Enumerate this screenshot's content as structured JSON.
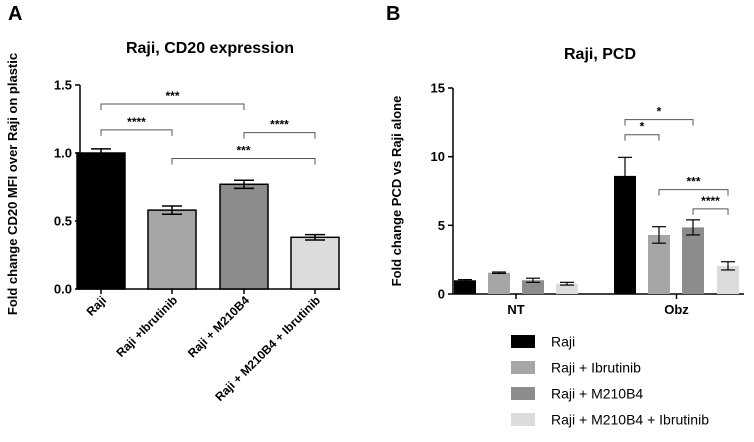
{
  "chart_data": [
    {
      "panel": "A",
      "type": "bar",
      "title": "Raji, CD20 expression",
      "ylabel": "Fold change CD20 MFI over Raji on plastic",
      "xlabel": "",
      "ylim": [
        0,
        1.5
      ],
      "yticks": [
        "0.0",
        "0.5",
        "1.0",
        "1.5"
      ],
      "yticks_values": [
        0,
        0.5,
        1.0,
        1.5
      ],
      "categories": [
        "Raji",
        "Raji +Ibrutinib",
        "Raji + M210B4",
        "Raji + M210B4 + Ibrutinib"
      ],
      "values": [
        1.0,
        0.58,
        0.77,
        0.38
      ],
      "errors": [
        0.03,
        0.03,
        0.03,
        0.02
      ],
      "colors": [
        "#000000",
        "#a6a6a6",
        "#8c8c8c",
        "#dcdcdc"
      ],
      "significance": [
        {
          "from": 0,
          "to": 1,
          "y": 1.17,
          "label": "****"
        },
        {
          "from": 0,
          "to": 2,
          "y": 1.36,
          "label": "***"
        },
        {
          "from": 1,
          "to": 3,
          "y": 0.96,
          "label": "***"
        },
        {
          "from": 2,
          "to": 3,
          "y": 1.15,
          "label": "****"
        }
      ]
    },
    {
      "panel": "B",
      "type": "bar",
      "title": "Raji,  PCD",
      "ylabel": "Fold change PCD vs Raji alone",
      "xlabel": "",
      "ylim": [
        0,
        15
      ],
      "yticks": [
        "0",
        "5",
        "10",
        "15"
      ],
      "yticks_values": [
        0,
        5,
        10,
        15
      ],
      "categories": [
        "NT",
        "Obz"
      ],
      "series": [
        {
          "name": "Raji",
          "values": [
            1.0,
            8.6
          ],
          "errors": [
            0.05,
            1.35
          ],
          "color": "#000000"
        },
        {
          "name": "Raji + Ibrutinib",
          "values": [
            1.55,
            4.3
          ],
          "errors": [
            0.05,
            0.6
          ],
          "color": "#a6a6a6"
        },
        {
          "name": "Raji + M210B4",
          "values": [
            1.0,
            4.85
          ],
          "errors": [
            0.15,
            0.55
          ],
          "color": "#8c8c8c"
        },
        {
          "name": "Raji + M210B4 + Ibrutinib",
          "values": [
            0.75,
            2.05
          ],
          "errors": [
            0.1,
            0.3
          ],
          "color": "#dcdcdc"
        }
      ],
      "significance": [
        {
          "category": 1,
          "from": 0,
          "to": 1,
          "y": 11.6,
          "label": "*"
        },
        {
          "category": 1,
          "from": 0,
          "to": 2,
          "y": 12.7,
          "label": "*"
        },
        {
          "category": 1,
          "from": 1,
          "to": 3,
          "y": 7.6,
          "label": "***"
        },
        {
          "category": 1,
          "from": 2,
          "to": 3,
          "y": 6.2,
          "label": "****"
        }
      ],
      "legend": [
        "Raji",
        "Raji + Ibrutinib",
        "Raji + M210B4",
        "Raji + M210B4 + Ibrutinib"
      ],
      "legend_position": "bottom-right"
    }
  ]
}
